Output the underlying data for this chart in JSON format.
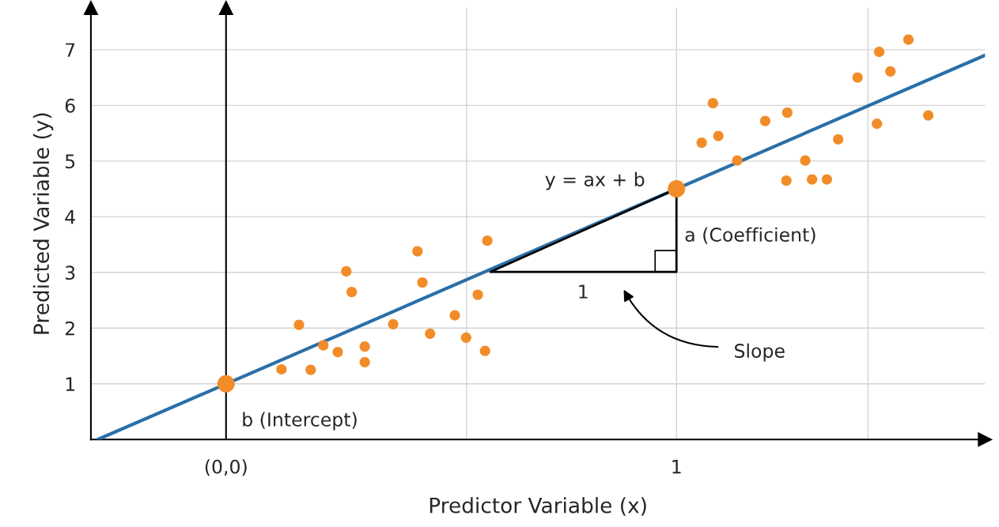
{
  "chart_data": {
    "type": "scatter",
    "xlabel": "Predictor Variable (x)",
    "ylabel": "Predicted Variable (y)",
    "xlim": [
      -0.3,
      1.685
    ],
    "ylim": [
      0,
      7.75
    ],
    "xticks": [
      {
        "value": 0,
        "label": "(0,0)"
      },
      {
        "value": 0.534,
        "label": null
      },
      1,
      {
        "value": 1.425,
        "label": null
      }
    ],
    "yticks": [
      1,
      2,
      3,
      4,
      5,
      6,
      7
    ],
    "grid": true,
    "legend": false,
    "ref_lines": [
      {
        "axis": "x",
        "value": 0,
        "color": "#000000"
      }
    ],
    "series": [
      {
        "type": "line",
        "color": "#2a6fa8",
        "x": [
          -0.285,
          1.685
        ],
        "values": [
          0,
          6.9
        ]
      },
      {
        "color": "#f28c28",
        "marker": "circle",
        "x": [
          0.123,
          0.162,
          0.188,
          0.216,
          0.248,
          0.267,
          0.279,
          0.308,
          0.308,
          0.371,
          0.425,
          0.436,
          0.453,
          0.508,
          0.533,
          0.559,
          0.575,
          0.58,
          1.056,
          1.081,
          1.093,
          1.135,
          1.197,
          1.244,
          1.246,
          1.286,
          1.301,
          1.334,
          1.359,
          1.402,
          1.445,
          1.45,
          1.475,
          1.515,
          1.559
        ],
        "values": [
          1.26,
          2.06,
          1.25,
          1.69,
          1.57,
          3.02,
          2.65,
          1.67,
          1.39,
          2.07,
          3.38,
          2.82,
          1.9,
          2.23,
          1.83,
          2.6,
          1.59,
          3.57,
          5.33,
          6.04,
          5.45,
          5.01,
          5.72,
          4.65,
          5.87,
          5.01,
          4.67,
          4.67,
          5.39,
          6.5,
          5.67,
          6.96,
          6.61,
          7.18,
          5.82
        ]
      },
      {
        "type": "bubble",
        "color": "#f28c28",
        "marker": "circle",
        "x": [
          0,
          1
        ],
        "values": [
          1,
          4.5
        ],
        "sizes": [
          1,
          1
        ]
      }
    ],
    "annotations": [
      "y = ax + b",
      "a (Coefficient)",
      "1",
      "Slope",
      {
        "text": "b (Intercept)",
        "x": 0,
        "y": 1
      }
    ]
  }
}
